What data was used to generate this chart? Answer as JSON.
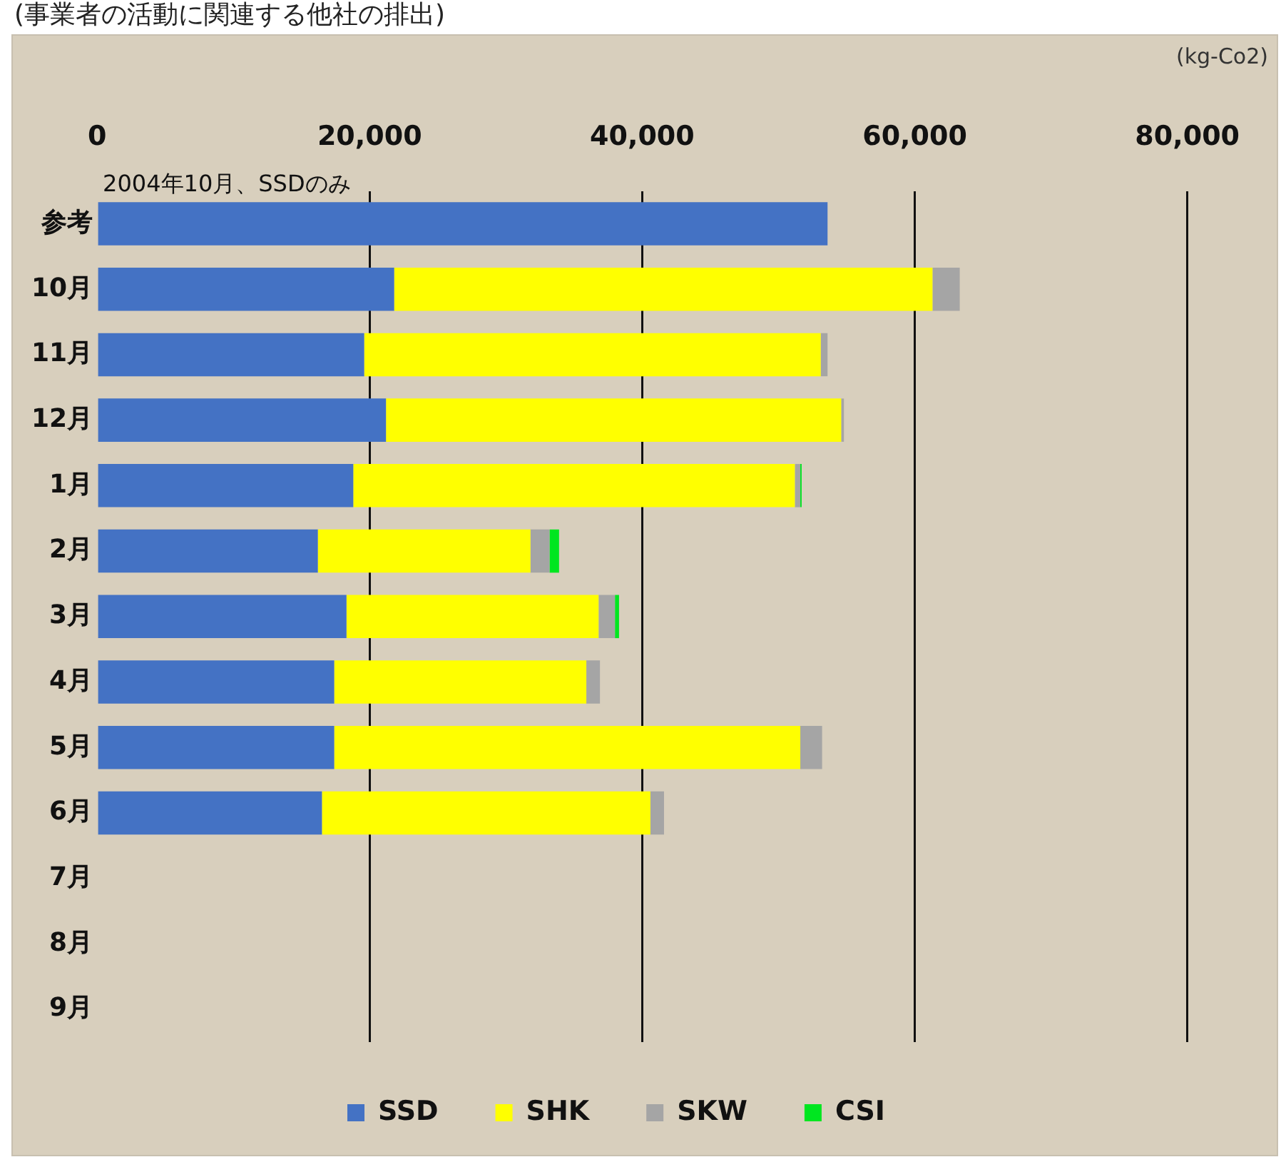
{
  "chart_data": {
    "type": "bar",
    "orientation": "horizontal",
    "stacked": true,
    "title": "(事業者の活動に関連する他社の排出)",
    "categories": [
      "参考",
      "10月",
      "11月",
      "12月",
      "1月",
      "2月",
      "3月",
      "4月",
      "5月",
      "6月",
      "7月",
      "8月",
      "9月"
    ],
    "series": [
      {
        "name": "SSD",
        "color": "#4472c4",
        "values": [
          53600,
          21800,
          19600,
          21200,
          18800,
          16200,
          18300,
          17400,
          17400,
          16500,
          null,
          null,
          null
        ]
      },
      {
        "name": "SHK",
        "color": "#ffff00",
        "values": [
          null,
          39500,
          33500,
          33400,
          32400,
          15600,
          18500,
          18500,
          34200,
          24100,
          null,
          null,
          null
        ]
      },
      {
        "name": "SKW",
        "color": "#a5a5a5",
        "values": [
          null,
          2000,
          500,
          200,
          400,
          1400,
          1200,
          1000,
          1600,
          1000,
          null,
          null,
          null
        ]
      },
      {
        "name": "CSI",
        "color": "#00e620",
        "values": [
          null,
          null,
          null,
          null,
          100,
          700,
          300,
          null,
          null,
          null,
          null,
          null,
          null
        ]
      }
    ],
    "xlim": [
      0,
      80000
    ],
    "xticks": [
      {
        "value": 0,
        "label": "0"
      },
      {
        "value": 20000,
        "label": "20,000"
      },
      {
        "value": 40000,
        "label": "40,000"
      },
      {
        "value": 60000,
        "label": "60,000"
      },
      {
        "value": 80000,
        "label": "80,000"
      }
    ],
    "grid": "x",
    "legend": "bottom",
    "annotations": [
      "(kg-Co2)",
      {
        "text": "2004年10月、SSDのみ",
        "x": 0,
        "y": "参考"
      }
    ]
  }
}
